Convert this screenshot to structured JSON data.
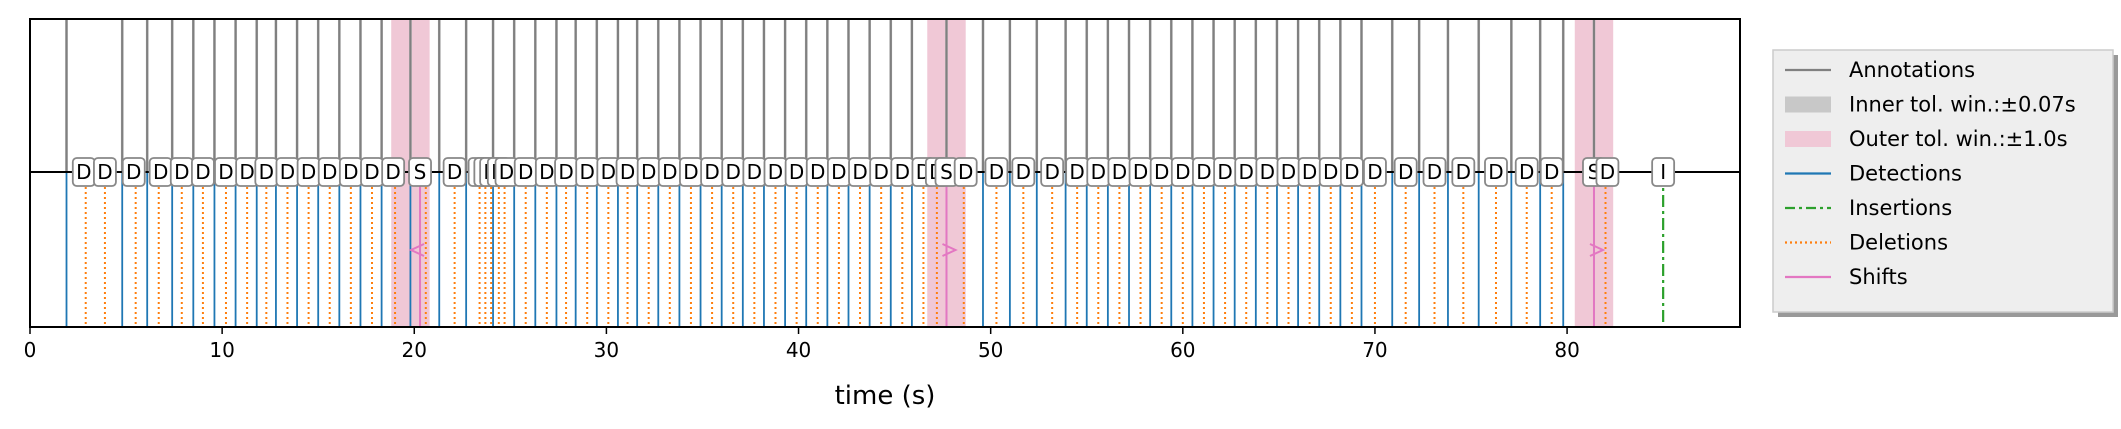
{
  "chart_data": {
    "type": "event-timeline",
    "xlabel": "time (s)",
    "xlim": [
      0,
      89
    ],
    "xticks": [
      0,
      10,
      20,
      30,
      40,
      50,
      60,
      70,
      80
    ],
    "xtick_labels": [
      "0",
      "10",
      "20",
      "30",
      "40",
      "50",
      "60",
      "70",
      "80"
    ],
    "legend": {
      "placement": "outside-right",
      "entries": [
        {
          "key": "annotations",
          "label": "Annotations",
          "color": "#808080",
          "style": "solid"
        },
        {
          "key": "inner",
          "label": "Inner tol. win.:±0.07s",
          "color": "#c8c8c8",
          "style": "patch"
        },
        {
          "key": "outer",
          "label": "Outer tol. win.:±1.0s",
          "color": "#f0c8d6",
          "style": "patch"
        },
        {
          "key": "detections",
          "label": "Detections",
          "color": "#1f77b4",
          "style": "solid"
        },
        {
          "key": "insertions",
          "label": "Insertions",
          "color": "#2ca02c",
          "style": "dashdot"
        },
        {
          "key": "deletions",
          "label": "Deletions",
          "color": "#ff7f0e",
          "style": "dotted"
        },
        {
          "key": "shifts",
          "label": "Shifts",
          "color": "#e377c2",
          "style": "solid"
        }
      ]
    },
    "annotations": [
      1.9,
      4.8,
      6.1,
      7.4,
      8.5,
      9.6,
      10.7,
      11.8,
      12.8,
      13.9,
      15.0,
      16.1,
      17.2,
      18.3,
      19.8,
      21.3,
      22.7,
      24.1,
      25.2,
      26.3,
      27.4,
      28.4,
      29.5,
      30.6,
      31.6,
      32.7,
      33.8,
      34.9,
      36.0,
      37.1,
      38.2,
      39.3,
      40.4,
      41.5,
      42.6,
      43.7,
      44.8,
      45.9,
      47.7,
      49.6,
      51.0,
      52.4,
      53.9,
      55.0,
      56.1,
      57.2,
      58.3,
      59.4,
      60.5,
      61.6,
      62.7,
      63.8,
      64.9,
      66.0,
      67.1,
      68.2,
      69.3,
      70.9,
      72.3,
      73.8,
      75.4,
      77.1,
      78.6,
      79.8,
      81.4
    ],
    "outer_windows": [
      19.8,
      47.7,
      81.4
    ],
    "outer_halfwidth": 1.0,
    "inner_halfwidth": 0.07,
    "detections": [
      1.9,
      4.8,
      6.1,
      7.4,
      8.5,
      9.6,
      10.7,
      11.8,
      12.8,
      13.9,
      15.0,
      16.1,
      17.2,
      18.3,
      19.8,
      21.3,
      22.7,
      24.1,
      25.2,
      26.3,
      27.4,
      28.4,
      29.5,
      30.6,
      31.6,
      32.7,
      33.8,
      34.9,
      36.0,
      37.1,
      38.2,
      39.3,
      40.4,
      41.5,
      42.6,
      43.7,
      44.8,
      45.9,
      47.7,
      49.6,
      51.0,
      52.4,
      53.9,
      55.0,
      56.1,
      57.2,
      58.3,
      59.4,
      60.5,
      61.6,
      62.7,
      63.8,
      64.9,
      66.0,
      67.1,
      68.2,
      69.3,
      70.9,
      72.3,
      73.8,
      75.4,
      77.1,
      78.6,
      79.8,
      81.4
    ],
    "deletions": [
      2.9,
      3.9,
      5.5,
      6.7,
      7.9,
      9.0,
      10.2,
      11.3,
      12.3,
      13.4,
      14.5,
      15.6,
      16.7,
      17.8,
      19.0,
      20.6,
      22.1,
      23.4,
      23.7,
      24.0,
      24.4,
      24.7,
      25.8,
      26.9,
      27.9,
      29.0,
      30.1,
      31.1,
      32.2,
      33.3,
      34.4,
      35.5,
      36.6,
      37.7,
      38.8,
      39.9,
      41.0,
      42.1,
      43.2,
      44.3,
      45.4,
      46.5,
      47.2,
      48.6,
      50.3,
      51.7,
      53.2,
      54.5,
      55.6,
      56.7,
      57.8,
      58.9,
      60.0,
      61.1,
      62.2,
      63.3,
      64.4,
      65.5,
      66.6,
      67.7,
      68.8,
      70.0,
      71.6,
      73.1,
      74.6,
      76.3,
      77.9,
      79.2,
      82.0
    ],
    "insertions": [
      85.0
    ],
    "shifts": [
      {
        "annotation": 19.8,
        "detection": 20.3,
        "direction": "left"
      },
      {
        "annotation": 47.7,
        "detection": 47.7,
        "direction": "right"
      },
      {
        "annotation": 81.4,
        "detection": 81.4,
        "direction": "right"
      }
    ],
    "labels": [
      {
        "x": 2.8,
        "text": "D"
      },
      {
        "x": 3.9,
        "text": "D"
      },
      {
        "x": 5.4,
        "text": "D"
      },
      {
        "x": 6.8,
        "text": "D"
      },
      {
        "x": 7.9,
        "text": "D"
      },
      {
        "x": 9.0,
        "text": "D"
      },
      {
        "x": 10.2,
        "text": "D"
      },
      {
        "x": 11.3,
        "text": "D"
      },
      {
        "x": 12.3,
        "text": "D"
      },
      {
        "x": 13.4,
        "text": "D"
      },
      {
        "x": 14.5,
        "text": "D"
      },
      {
        "x": 15.6,
        "text": "D"
      },
      {
        "x": 16.7,
        "text": "D"
      },
      {
        "x": 17.8,
        "text": "D"
      },
      {
        "x": 18.9,
        "text": "D"
      },
      {
        "x": 20.3,
        "text": "S"
      },
      {
        "x": 22.1,
        "text": "D"
      },
      {
        "x": 23.4,
        "text": "D"
      },
      {
        "x": 23.7,
        "text": "D"
      },
      {
        "x": 24.0,
        "text": "D"
      },
      {
        "x": 24.4,
        "text": "D"
      },
      {
        "x": 24.8,
        "text": "D"
      },
      {
        "x": 25.8,
        "text": "D"
      },
      {
        "x": 26.9,
        "text": "D"
      },
      {
        "x": 27.9,
        "text": "D"
      },
      {
        "x": 29.0,
        "text": "D"
      },
      {
        "x": 30.1,
        "text": "D"
      },
      {
        "x": 31.1,
        "text": "D"
      },
      {
        "x": 32.2,
        "text": "D"
      },
      {
        "x": 33.3,
        "text": "D"
      },
      {
        "x": 34.4,
        "text": "D"
      },
      {
        "x": 35.5,
        "text": "D"
      },
      {
        "x": 36.6,
        "text": "D"
      },
      {
        "x": 37.7,
        "text": "D"
      },
      {
        "x": 38.8,
        "text": "D"
      },
      {
        "x": 39.9,
        "text": "D"
      },
      {
        "x": 41.0,
        "text": "D"
      },
      {
        "x": 42.1,
        "text": "D"
      },
      {
        "x": 43.2,
        "text": "D"
      },
      {
        "x": 44.3,
        "text": "D"
      },
      {
        "x": 45.4,
        "text": "D"
      },
      {
        "x": 46.5,
        "text": "D"
      },
      {
        "x": 47.2,
        "text": "D"
      },
      {
        "x": 47.7,
        "text": "S"
      },
      {
        "x": 48.7,
        "text": "D"
      },
      {
        "x": 50.3,
        "text": "D"
      },
      {
        "x": 51.7,
        "text": "D"
      },
      {
        "x": 53.2,
        "text": "D"
      },
      {
        "x": 54.5,
        "text": "D"
      },
      {
        "x": 55.6,
        "text": "D"
      },
      {
        "x": 56.7,
        "text": "D"
      },
      {
        "x": 57.8,
        "text": "D"
      },
      {
        "x": 58.9,
        "text": "D"
      },
      {
        "x": 60.0,
        "text": "D"
      },
      {
        "x": 61.1,
        "text": "D"
      },
      {
        "x": 62.2,
        "text": "D"
      },
      {
        "x": 63.3,
        "text": "D"
      },
      {
        "x": 64.4,
        "text": "D"
      },
      {
        "x": 65.5,
        "text": "D"
      },
      {
        "x": 66.6,
        "text": "D"
      },
      {
        "x": 67.7,
        "text": "D"
      },
      {
        "x": 68.8,
        "text": "D"
      },
      {
        "x": 70.0,
        "text": "D"
      },
      {
        "x": 71.6,
        "text": "D"
      },
      {
        "x": 73.1,
        "text": "D"
      },
      {
        "x": 74.6,
        "text": "D"
      },
      {
        "x": 76.3,
        "text": "D"
      },
      {
        "x": 77.9,
        "text": "D"
      },
      {
        "x": 79.2,
        "text": "D"
      },
      {
        "x": 81.4,
        "text": "S"
      },
      {
        "x": 82.1,
        "text": "D"
      },
      {
        "x": 85.0,
        "text": "I"
      }
    ]
  }
}
